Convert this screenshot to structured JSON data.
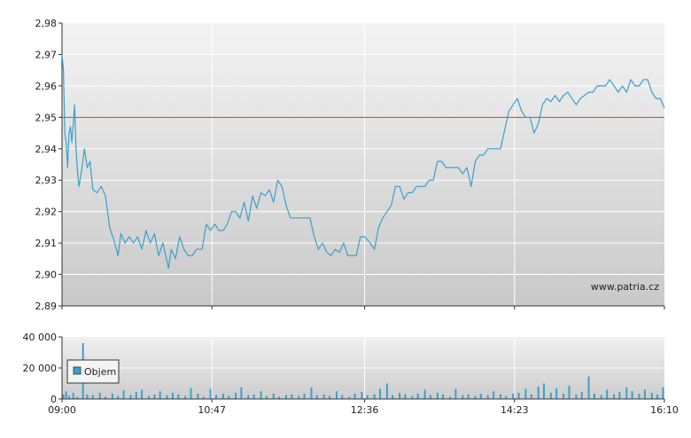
{
  "chart_data": [
    {
      "type": "line",
      "title": "",
      "xlabel": "",
      "ylabel": "",
      "ylim": [
        2.89,
        2.98
      ],
      "y_ticks": [
        "2,98",
        "2,97",
        "2,96",
        "2,95",
        "2,94",
        "2,93",
        "2,92",
        "2,91",
        "2,90",
        "2,89"
      ],
      "y_tick_values": [
        2.98,
        2.97,
        2.96,
        2.95,
        2.94,
        2.93,
        2.92,
        2.91,
        2.9,
        2.89
      ],
      "x_ticks": [
        "09:00",
        "10:47",
        "12:36",
        "14:23",
        "16:10"
      ],
      "x_range": [
        "09:00",
        "16:10"
      ],
      "reference_line": {
        "value": 2.95,
        "color": "#e03030"
      },
      "watermark": "www.patria.cz",
      "grid": true,
      "series": [
        {
          "color": "#3aa0cc",
          "points": [
            [
              "09:00",
              2.97
            ],
            [
              "09:01",
              2.965
            ],
            [
              "09:02",
              2.945
            ],
            [
              "09:03",
              2.942
            ],
            [
              "09:04",
              2.934
            ],
            [
              "09:05",
              2.945
            ],
            [
              "09:06",
              2.947
            ],
            [
              "09:07",
              2.942
            ],
            [
              "09:08",
              2.948
            ],
            [
              "09:09",
              2.954
            ],
            [
              "09:10",
              2.94
            ],
            [
              "09:11",
              2.933
            ],
            [
              "09:12",
              2.928
            ],
            [
              "09:14",
              2.933
            ],
            [
              "09:16",
              2.94
            ],
            [
              "09:18",
              2.934
            ],
            [
              "09:20",
              2.936
            ],
            [
              "09:22",
              2.927
            ],
            [
              "09:25",
              2.926
            ],
            [
              "09:28",
              2.928
            ],
            [
              "09:31",
              2.925
            ],
            [
              "09:34",
              2.915
            ],
            [
              "09:37",
              2.911
            ],
            [
              "09:40",
              2.906
            ],
            [
              "09:42",
              2.913
            ],
            [
              "09:45",
              2.91
            ],
            [
              "09:48",
              2.912
            ],
            [
              "09:51",
              2.91
            ],
            [
              "09:54",
              2.912
            ],
            [
              "09:57",
              2.908
            ],
            [
              "10:00",
              2.914
            ],
            [
              "10:03",
              2.91
            ],
            [
              "10:06",
              2.913
            ],
            [
              "10:09",
              2.906
            ],
            [
              "10:12",
              2.91
            ],
            [
              "10:14",
              2.906
            ],
            [
              "10:16",
              2.902
            ],
            [
              "10:18",
              2.908
            ],
            [
              "10:21",
              2.905
            ],
            [
              "10:24",
              2.912
            ],
            [
              "10:27",
              2.908
            ],
            [
              "10:30",
              2.906
            ],
            [
              "10:33",
              2.906
            ],
            [
              "10:36",
              2.908
            ],
            [
              "10:40",
              2.908
            ],
            [
              "10:43",
              2.916
            ],
            [
              "10:46",
              2.914
            ],
            [
              "10:49",
              2.916
            ],
            [
              "10:52",
              2.914
            ],
            [
              "10:55",
              2.914
            ],
            [
              "10:58",
              2.916
            ],
            [
              "11:01",
              2.92
            ],
            [
              "11:04",
              2.92
            ],
            [
              "11:07",
              2.918
            ],
            [
              "11:10",
              2.923
            ],
            [
              "11:13",
              2.917
            ],
            [
              "11:16",
              2.925
            ],
            [
              "11:19",
              2.921
            ],
            [
              "11:22",
              2.926
            ],
            [
              "11:25",
              2.925
            ],
            [
              "11:28",
              2.927
            ],
            [
              "11:31",
              2.923
            ],
            [
              "11:34",
              2.93
            ],
            [
              "11:37",
              2.928
            ],
            [
              "11:40",
              2.922
            ],
            [
              "11:43",
              2.918
            ],
            [
              "11:50",
              2.918
            ],
            [
              "11:57",
              2.918
            ],
            [
              "12:00",
              2.912
            ],
            [
              "12:03",
              2.908
            ],
            [
              "12:06",
              2.91
            ],
            [
              "12:09",
              2.907
            ],
            [
              "12:12",
              2.906
            ],
            [
              "12:15",
              2.908
            ],
            [
              "12:18",
              2.907
            ],
            [
              "12:21",
              2.91
            ],
            [
              "12:24",
              2.906
            ],
            [
              "12:27",
              2.906
            ],
            [
              "12:30",
              2.906
            ],
            [
              "12:33",
              2.912
            ],
            [
              "12:36",
              2.912
            ],
            [
              "12:40",
              2.91
            ],
            [
              "12:43",
              2.908
            ],
            [
              "12:46",
              2.915
            ],
            [
              "12:49",
              2.918
            ],
            [
              "12:52",
              2.92
            ],
            [
              "12:55",
              2.922
            ],
            [
              "12:58",
              2.928
            ],
            [
              "13:01",
              2.928
            ],
            [
              "13:04",
              2.924
            ],
            [
              "13:07",
              2.926
            ],
            [
              "13:10",
              2.926
            ],
            [
              "13:13",
              2.928
            ],
            [
              "13:16",
              2.928
            ],
            [
              "13:19",
              2.928
            ],
            [
              "13:22",
              2.93
            ],
            [
              "13:25",
              2.93
            ],
            [
              "13:28",
              2.936
            ],
            [
              "13:31",
              2.936
            ],
            [
              "13:34",
              2.934
            ],
            [
              "13:37",
              2.934
            ],
            [
              "13:40",
              2.934
            ],
            [
              "13:43",
              2.934
            ],
            [
              "13:46",
              2.932
            ],
            [
              "13:49",
              2.934
            ],
            [
              "13:52",
              2.928
            ],
            [
              "13:55",
              2.936
            ],
            [
              "13:58",
              2.938
            ],
            [
              "14:01",
              2.938
            ],
            [
              "14:04",
              2.94
            ],
            [
              "14:07",
              2.94
            ],
            [
              "14:10",
              2.94
            ],
            [
              "14:13",
              2.94
            ],
            [
              "14:16",
              2.946
            ],
            [
              "14:19",
              2.952
            ],
            [
              "14:22",
              2.954
            ],
            [
              "14:25",
              2.956
            ],
            [
              "14:28",
              2.952
            ],
            [
              "14:31",
              2.95
            ],
            [
              "14:34",
              2.95
            ],
            [
              "14:37",
              2.945
            ],
            [
              "14:40",
              2.948
            ],
            [
              "14:43",
              2.954
            ],
            [
              "14:46",
              2.956
            ],
            [
              "14:49",
              2.955
            ],
            [
              "14:52",
              2.957
            ],
            [
              "14:55",
              2.955
            ],
            [
              "14:58",
              2.957
            ],
            [
              "15:01",
              2.958
            ],
            [
              "15:04",
              2.956
            ],
            [
              "15:07",
              2.954
            ],
            [
              "15:10",
              2.956
            ],
            [
              "15:13",
              2.957
            ],
            [
              "15:16",
              2.958
            ],
            [
              "15:19",
              2.958
            ],
            [
              "15:22",
              2.96
            ],
            [
              "15:25",
              2.96
            ],
            [
              "15:28",
              2.96
            ],
            [
              "15:31",
              2.962
            ],
            [
              "15:34",
              2.96
            ],
            [
              "15:37",
              2.958
            ],
            [
              "15:40",
              2.96
            ],
            [
              "15:43",
              2.958
            ],
            [
              "15:46",
              2.962
            ],
            [
              "15:49",
              2.96
            ],
            [
              "15:52",
              2.96
            ],
            [
              "15:55",
              2.962
            ],
            [
              "15:58",
              2.962
            ],
            [
              "16:01",
              2.958
            ],
            [
              "16:04",
              2.956
            ],
            [
              "16:07",
              2.956
            ],
            [
              "16:10",
              2.953
            ]
          ]
        }
      ]
    },
    {
      "type": "bar",
      "title": "",
      "xlabel": "",
      "ylabel": "",
      "ylim": [
        0,
        40000
      ],
      "y_ticks": [
        "40 000",
        "20 000",
        "0"
      ],
      "y_tick_values": [
        40000,
        20000,
        0
      ],
      "x_ticks": [
        "09:00",
        "10:47",
        "12:36",
        "14:23",
        "16:10"
      ],
      "x_range": [
        "09:00",
        "16:10"
      ],
      "legend": {
        "label": "Objem",
        "position": "left"
      },
      "grid": true,
      "series": [
        {
          "name": "Objem",
          "color": "#3aa0cc",
          "points": [
            [
              "09:01",
              3000
            ],
            [
              "09:03",
              5000
            ],
            [
              "09:05",
              2000
            ],
            [
              "09:08",
              4000
            ],
            [
              "09:11",
              1500
            ],
            [
              "09:15",
              36000
            ],
            [
              "09:18",
              3000
            ],
            [
              "09:22",
              2500
            ],
            [
              "09:27",
              4000
            ],
            [
              "09:31",
              1500
            ],
            [
              "09:36",
              3500
            ],
            [
              "09:40",
              2000
            ],
            [
              "09:44",
              5500
            ],
            [
              "09:49",
              2500
            ],
            [
              "09:53",
              4500
            ],
            [
              "09:57",
              6000
            ],
            [
              "10:02",
              2000
            ],
            [
              "10:06",
              3000
            ],
            [
              "10:10",
              5000
            ],
            [
              "10:15",
              2500
            ],
            [
              "10:19",
              4000
            ],
            [
              "10:23",
              3000
            ],
            [
              "10:28",
              2000
            ],
            [
              "10:32",
              7000
            ],
            [
              "10:37",
              3500
            ],
            [
              "10:41",
              1500
            ],
            [
              "10:46",
              6500
            ],
            [
              "10:50",
              2500
            ],
            [
              "10:55",
              3500
            ],
            [
              "10:59",
              2000
            ],
            [
              "11:04",
              4000
            ],
            [
              "11:08",
              7500
            ],
            [
              "11:13",
              2500
            ],
            [
              "11:17",
              3000
            ],
            [
              "11:22",
              5000
            ],
            [
              "11:26",
              2000
            ],
            [
              "11:31",
              3500
            ],
            [
              "11:35",
              1500
            ],
            [
              "11:40",
              2500
            ],
            [
              "11:44",
              3000
            ],
            [
              "11:49",
              2000
            ],
            [
              "11:53",
              3500
            ],
            [
              "11:58",
              7500
            ],
            [
              "12:02",
              2500
            ],
            [
              "12:07",
              3000
            ],
            [
              "12:11",
              2000
            ],
            [
              "12:16",
              5000
            ],
            [
              "12:20",
              2500
            ],
            [
              "12:25",
              1500
            ],
            [
              "12:29",
              3500
            ],
            [
              "12:34",
              4500
            ],
            [
              "12:38",
              2500
            ],
            [
              "12:43",
              3000
            ],
            [
              "12:47",
              6500
            ],
            [
              "12:52",
              10000
            ],
            [
              "12:56",
              2500
            ],
            [
              "13:01",
              4000
            ],
            [
              "13:05",
              3000
            ],
            [
              "13:10",
              2000
            ],
            [
              "13:14",
              3500
            ],
            [
              "13:19",
              6000
            ],
            [
              "13:23",
              2500
            ],
            [
              "13:28",
              4000
            ],
            [
              "13:32",
              3000
            ],
            [
              "13:37",
              1500
            ],
            [
              "13:41",
              6500
            ],
            [
              "13:46",
              2500
            ],
            [
              "13:50",
              3000
            ],
            [
              "13:55",
              2000
            ],
            [
              "13:59",
              3500
            ],
            [
              "14:04",
              2500
            ],
            [
              "14:08",
              5000
            ],
            [
              "14:13",
              3000
            ],
            [
              "14:17",
              2000
            ],
            [
              "14:22",
              3500
            ],
            [
              "14:26",
              4000
            ],
            [
              "14:31",
              6500
            ],
            [
              "14:35",
              3000
            ],
            [
              "14:40",
              8000
            ],
            [
              "14:44",
              10000
            ],
            [
              "14:49",
              4000
            ],
            [
              "14:53",
              7000
            ],
            [
              "14:58",
              3500
            ],
            [
              "15:02",
              8500
            ],
            [
              "15:07",
              3000
            ],
            [
              "15:11",
              4500
            ],
            [
              "15:16",
              14500
            ],
            [
              "15:20",
              3500
            ],
            [
              "15:25",
              2500
            ],
            [
              "15:29",
              6000
            ],
            [
              "15:34",
              3000
            ],
            [
              "15:38",
              4500
            ],
            [
              "15:43",
              7500
            ],
            [
              "15:47",
              5000
            ],
            [
              "15:52",
              3500
            ],
            [
              "15:56",
              6000
            ],
            [
              "16:01",
              4000
            ],
            [
              "16:05",
              3000
            ],
            [
              "16:09",
              7500
            ]
          ]
        }
      ]
    }
  ]
}
